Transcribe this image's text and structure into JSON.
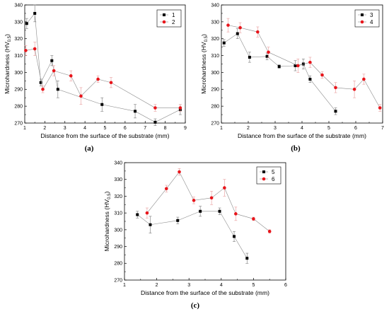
{
  "chart_data": [
    {
      "type": "scatter",
      "panel_label": "(a)",
      "xlabel": "Distance from the surface of the substrate (mm)",
      "ylabel_main": "Microhardness (HV",
      "ylabel_sub": "0.5",
      "ylabel_end": ")",
      "xlim": [
        1,
        9
      ],
      "ylim": [
        270,
        340
      ],
      "xticks": [
        "1",
        "2",
        "3",
        "4",
        "5",
        "6",
        "7",
        "8",
        "9"
      ],
      "yticks": [
        "270",
        "280",
        "290",
        "300",
        "310",
        "320",
        "330",
        "340"
      ],
      "legend_position": "top-right",
      "series": [
        {
          "name": "1",
          "color": "#000000",
          "marker": "square",
          "x": [
            1.1,
            1.5,
            1.8,
            2.35,
            2.65,
            4.85,
            6.5,
            7.5,
            8.75
          ],
          "y": [
            329,
            335,
            294,
            307,
            290,
            281,
            277,
            270.5,
            278
          ],
          "err": [
            3,
            5,
            2,
            3,
            5,
            4,
            4,
            2,
            3
          ]
        },
        {
          "name": "2",
          "color": "#e8151b",
          "marker": "circle",
          "x": [
            1.05,
            1.5,
            1.9,
            2.45,
            3.3,
            3.8,
            4.65,
            5.3,
            7.5,
            8.75
          ],
          "y": [
            313,
            314,
            290,
            301,
            298,
            286,
            296,
            294,
            279,
            279
          ],
          "err": [
            3,
            4,
            2,
            3,
            3,
            5,
            2,
            3,
            2,
            2
          ]
        }
      ]
    },
    {
      "type": "scatter",
      "panel_label": "(b)",
      "xlabel": "Distance from the surface of the substrate (mm)",
      "ylabel_main": "Microhardness (HV",
      "ylabel_sub": "0.5",
      "ylabel_end": ")",
      "xlim": [
        1,
        7
      ],
      "ylim": [
        270,
        340
      ],
      "xticks": [
        "1",
        "2",
        "3",
        "4",
        "5",
        "6",
        "7"
      ],
      "yticks": [
        "270",
        "280",
        "290",
        "300",
        "310",
        "320",
        "330",
        "340"
      ],
      "legend_position": "top-right",
      "series": [
        {
          "name": "3",
          "color": "#000000",
          "marker": "square",
          "x": [
            1.1,
            1.6,
            2.05,
            2.7,
            3.15,
            3.75,
            4.05,
            4.3,
            5.25
          ],
          "y": [
            317.5,
            323,
            309,
            309.5,
            303.5,
            304,
            305,
            296,
            277
          ],
          "err": [
            2,
            3,
            3,
            2,
            1,
            3,
            3,
            2,
            2
          ]
        },
        {
          "name": "4",
          "color": "#e8151b",
          "marker": "circle",
          "x": [
            1.25,
            1.7,
            2.35,
            2.75,
            3.85,
            4.3,
            4.75,
            5.25,
            5.95,
            6.3,
            6.9
          ],
          "y": [
            328,
            326.5,
            324,
            312,
            304,
            306,
            298.5,
            291,
            290,
            296,
            279
          ],
          "err": [
            4,
            3,
            3,
            3,
            4,
            3,
            2,
            3,
            5,
            3,
            2
          ]
        }
      ]
    },
    {
      "type": "scatter",
      "panel_label": "(c)",
      "xlabel": "Distance from the surface of the substrate (mm)",
      "ylabel_main": "Microhardness (HV",
      "ylabel_sub": "0.5",
      "ylabel_end": ")",
      "xlim": [
        1,
        6
      ],
      "ylim": [
        270,
        340
      ],
      "xticks": [
        "1",
        "2",
        "3",
        "4",
        "5",
        "6"
      ],
      "yticks": [
        "270",
        "280",
        "290",
        "300",
        "310",
        "320",
        "330",
        "340"
      ],
      "legend_position": "top-right",
      "series": [
        {
          "name": "5",
          "color": "#000000",
          "marker": "square",
          "x": [
            1.4,
            1.8,
            2.65,
            3.35,
            3.95,
            4.4,
            4.8
          ],
          "y": [
            309,
            303,
            305.5,
            311,
            311,
            296,
            283
          ],
          "err": [
            2,
            5,
            2,
            3,
            2,
            3,
            3
          ]
        },
        {
          "name": "6",
          "color": "#e8151b",
          "marker": "circle",
          "x": [
            1.7,
            2.3,
            2.7,
            3.15,
            3.7,
            4.1,
            4.45,
            5.0,
            5.5
          ],
          "y": [
            310,
            324.5,
            334.5,
            317.5,
            319,
            325,
            309.5,
            306.5,
            299
          ],
          "err": [
            3,
            2,
            2,
            2,
            4,
            5,
            4,
            1,
            1
          ]
        }
      ]
    }
  ]
}
